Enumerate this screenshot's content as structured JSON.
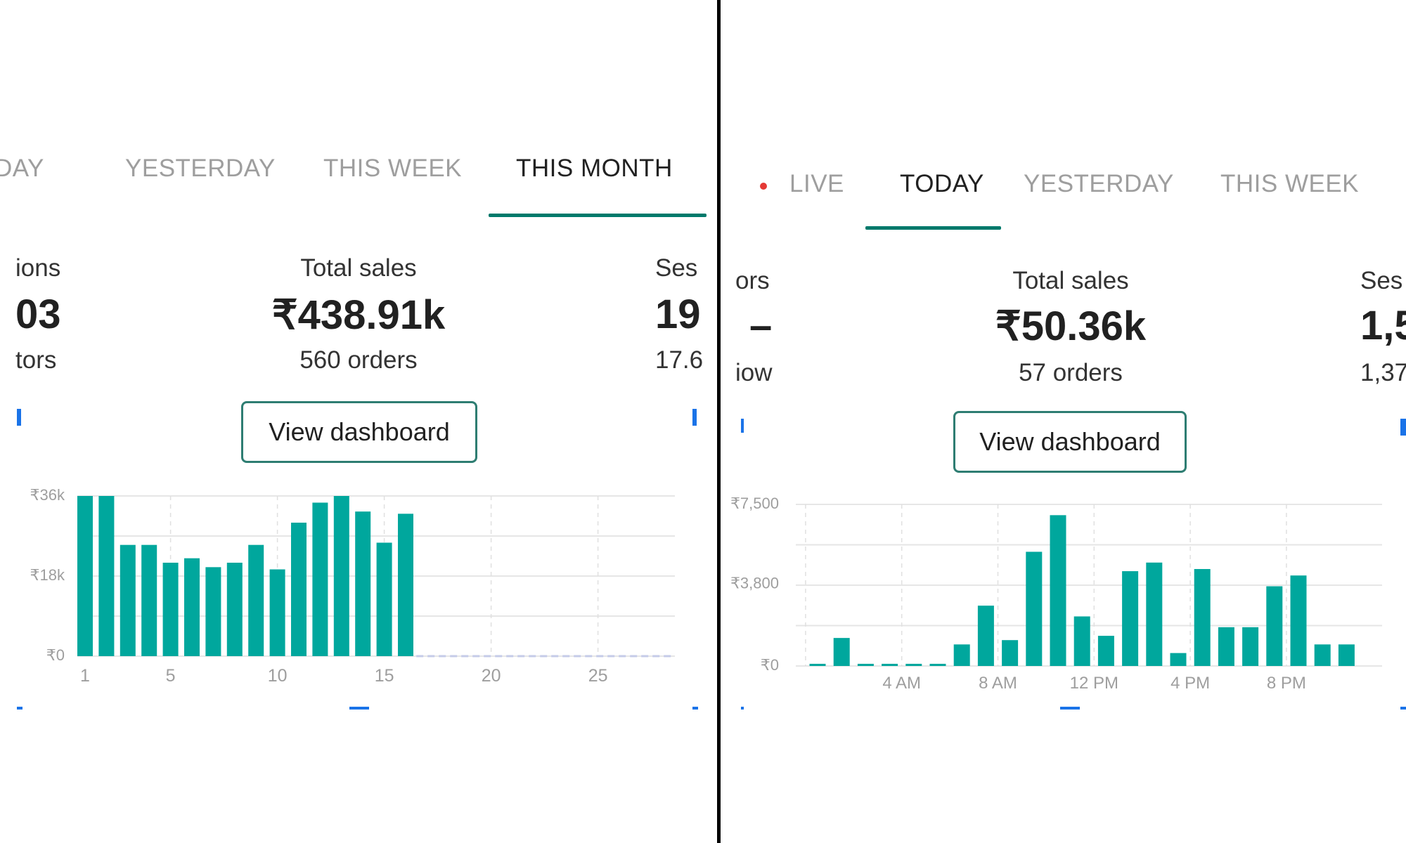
{
  "left": {
    "tabs": [
      {
        "label": "DAY",
        "active": false
      },
      {
        "label": "YESTERDAY",
        "active": false
      },
      {
        "label": "THIS WEEK",
        "active": false
      },
      {
        "label": "THIS MONTH",
        "active": true
      }
    ],
    "metrics": {
      "left_label": "ions",
      "left_value": "03",
      "left_sub": "tors",
      "center_label": "Total sales",
      "center_value": "₹438.91k",
      "center_sub": "560 orders",
      "right_label": "Ses",
      "right_value": "19",
      "right_sub": "17.6"
    },
    "button_label": "View dashboard",
    "accent_color": "#00a79d",
    "chart_data": {
      "type": "bar",
      "x": [
        1,
        2,
        3,
        4,
        5,
        6,
        7,
        8,
        9,
        10,
        11,
        12,
        13,
        14,
        15,
        16
      ],
      "values": [
        36000,
        36000,
        25000,
        25000,
        21000,
        22000,
        20000,
        21000,
        25000,
        19500,
        30000,
        34500,
        36000,
        32500,
        25500,
        32000
      ],
      "x_ticks": [
        "1",
        "5",
        "10",
        "15",
        "20",
        "25"
      ],
      "y_ticks": [
        "₹0",
        "₹18k",
        "₹36k"
      ],
      "ylim": [
        0,
        36000
      ],
      "xlim": [
        1,
        28
      ]
    }
  },
  "right": {
    "tabs": [
      {
        "label": "LIVE",
        "active": false
      },
      {
        "label": "TODAY",
        "active": true
      },
      {
        "label": "YESTERDAY",
        "active": false
      },
      {
        "label": "THIS WEEK",
        "active": false
      }
    ],
    "metrics": {
      "left_label": "ors",
      "left_value": "–",
      "left_sub": "iow",
      "center_label": "Total sales",
      "center_value": "₹50.36k",
      "center_sub": "57 orders",
      "right_label": "Ses",
      "right_value": "1,5",
      "right_sub": "1,37"
    },
    "button_label": "View dashboard",
    "accent_color": "#00a79d",
    "live_dot_color": "#e53935",
    "chart_data": {
      "type": "bar",
      "x": [
        0,
        1,
        2,
        3,
        4,
        5,
        6,
        7,
        8,
        9,
        10,
        11,
        12,
        13,
        14,
        15,
        16,
        17,
        18,
        19,
        20,
        21,
        22,
        23
      ],
      "values": [
        100,
        1300,
        100,
        100,
        100,
        100,
        1000,
        2800,
        1200,
        5300,
        7000,
        2300,
        1400,
        4400,
        4800,
        600,
        4500,
        1800,
        1800,
        3700,
        4200,
        1000,
        1000,
        0
      ],
      "x_ticks": [
        "4 AM",
        "8 AM",
        "12 PM",
        "4 PM",
        "8 PM"
      ],
      "y_ticks": [
        "₹0",
        "₹3,800",
        "₹7,500"
      ],
      "ylim": [
        0,
        7500
      ]
    }
  }
}
